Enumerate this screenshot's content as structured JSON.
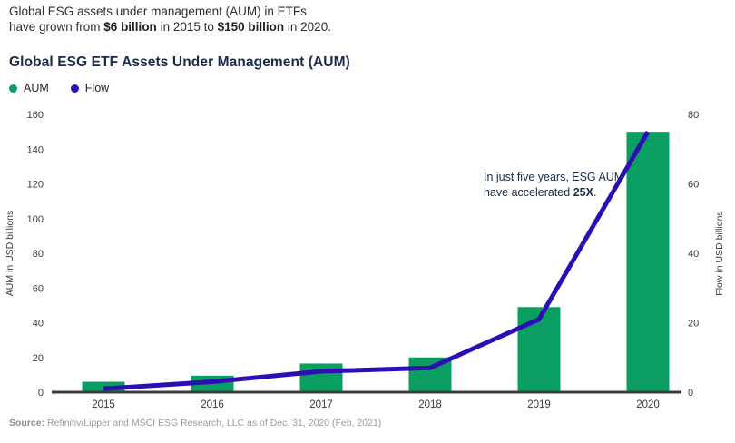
{
  "intro": {
    "line1": "Global ESG assets under management (AUM) in ETFs",
    "line2_prefix": "have grown from ",
    "line2_bold1": "$6 billion",
    "line2_mid": " in 2015 to ",
    "line2_bold2": "$150 billion",
    "line2_suffix": " in 2020."
  },
  "chart_data": {
    "type": "bar",
    "title": "Global ESG ETF Assets Under Management (AUM)",
    "categories": [
      "2015",
      "2016",
      "2017",
      "2018",
      "2019",
      "2020"
    ],
    "series": [
      {
        "name": "AUM",
        "type": "bar",
        "axis": "left",
        "color": "#0a9e62",
        "values": [
          6,
          9.5,
          16.5,
          20,
          49,
          150
        ]
      },
      {
        "name": "Flow",
        "type": "line",
        "axis": "right",
        "color": "#2f0db4",
        "values": [
          1,
          3,
          6,
          7,
          21,
          75
        ]
      }
    ],
    "ylabel_left": "AUM in USD billions",
    "ylabel_right": "Flow in USD billions",
    "ylim_left": [
      0,
      160
    ],
    "ylim_right": [
      0,
      80
    ],
    "yticks_left": [
      0,
      20,
      40,
      60,
      80,
      100,
      120,
      140,
      160
    ],
    "yticks_right": [
      0,
      20,
      40,
      60,
      80
    ],
    "grid": false,
    "legend_position": "top-left",
    "axis_line_color": "#3d3d3d",
    "annotation": {
      "line1": "In just five years, ESG AUM",
      "line2_prefix": "have accelerated ",
      "line2_bold": "25X",
      "line2_suffix": "."
    }
  },
  "source": {
    "label": "Source:",
    "text": "Refinitiv/Lipper and MSCI ESG Research, LLC as of Dec. 31, 2020 (Feb, 2021)"
  }
}
